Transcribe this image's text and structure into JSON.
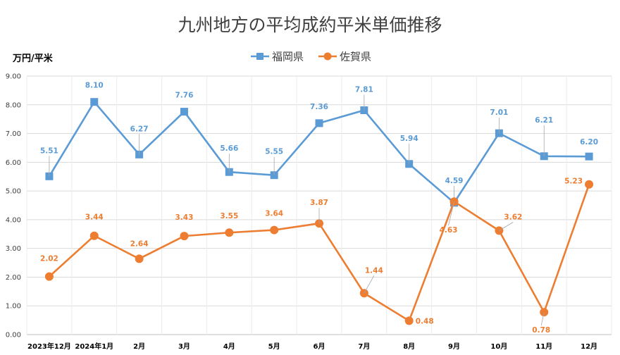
{
  "chart_data": {
    "type": "line",
    "title": "九州地方の平均成約平米単価推移",
    "unit_label": "万円/平米",
    "categories": [
      "2023年12月",
      "2024年1月",
      "2月",
      "3月",
      "4月",
      "5月",
      "6月",
      "7月",
      "8月",
      "9月",
      "10月",
      "11月",
      "12月"
    ],
    "ylim": [
      0,
      9
    ],
    "yticks": [
      "0.00",
      "1.00",
      "2.00",
      "3.00",
      "4.00",
      "5.00",
      "6.00",
      "7.00",
      "8.00",
      "9.00"
    ],
    "grid": true,
    "legend_position": "top-center",
    "series": [
      {
        "name": "福岡県",
        "color": "#5B9BD5",
        "marker": "square",
        "values": [
          5.51,
          8.1,
          6.27,
          7.76,
          5.66,
          5.55,
          7.36,
          7.81,
          5.94,
          4.59,
          7.01,
          6.21,
          6.2
        ],
        "labels": [
          "5.51",
          "8.10",
          "6.27",
          "7.76",
          "5.66",
          "5.55",
          "7.36",
          "7.81",
          "5.94",
          "4.59",
          "7.01",
          "6.21",
          "6.20"
        ]
      },
      {
        "name": "佐賀県",
        "color": "#ED7D31",
        "marker": "circle",
        "values": [
          2.02,
          3.44,
          2.64,
          3.43,
          3.55,
          3.64,
          3.87,
          1.44,
          0.48,
          4.63,
          3.62,
          0.78,
          5.23
        ],
        "labels": [
          "2.02",
          "3.44",
          "2.64",
          "3.43",
          "3.55",
          "3.64",
          "3.87",
          "1.44",
          "0.48",
          "4.63",
          "3.62",
          "0.78",
          "5.23"
        ]
      }
    ]
  }
}
